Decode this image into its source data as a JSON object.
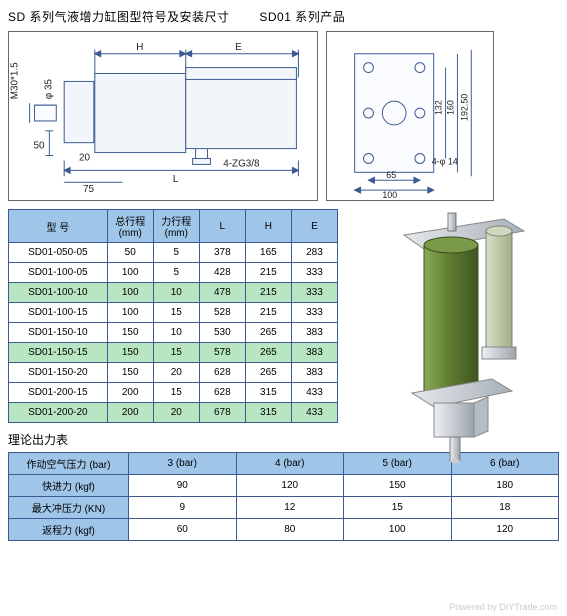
{
  "title_left": "SD 系列气液增力缸图型符号及安装尺寸",
  "title_right": "SD01 系列产品",
  "specs_table": {
    "columns": [
      "型 号",
      "总行程\n(mm)",
      "力行程\n(mm)",
      "L",
      "H",
      "E"
    ],
    "col_widths": [
      "30%",
      "14%",
      "14%",
      "14%",
      "14%",
      "14%"
    ],
    "rows": [
      {
        "cells": [
          "SD01-050-05",
          "50",
          "5",
          "378",
          "165",
          "283"
        ],
        "hl": false
      },
      {
        "cells": [
          "SD01-100-05",
          "100",
          "5",
          "428",
          "215",
          "333"
        ],
        "hl": false
      },
      {
        "cells": [
          "SD01-100-10",
          "100",
          "10",
          "478",
          "215",
          "333"
        ],
        "hl": true
      },
      {
        "cells": [
          "SD01-100-15",
          "100",
          "15",
          "528",
          "215",
          "333"
        ],
        "hl": false
      },
      {
        "cells": [
          "SD01-150-10",
          "150",
          "10",
          "530",
          "265",
          "383"
        ],
        "hl": false
      },
      {
        "cells": [
          "SD01-150-15",
          "150",
          "15",
          "578",
          "265",
          "383"
        ],
        "hl": true
      },
      {
        "cells": [
          "SD01-150-20",
          "150",
          "20",
          "628",
          "265",
          "383"
        ],
        "hl": false
      },
      {
        "cells": [
          "SD01-200-15",
          "200",
          "15",
          "628",
          "315",
          "433"
        ],
        "hl": false
      },
      {
        "cells": [
          "SD01-200-20",
          "200",
          "20",
          "678",
          "315",
          "433"
        ],
        "hl": true
      }
    ]
  },
  "output_section_label": "理论出力表",
  "output_table": {
    "header": [
      "作动空气压力 (bar)",
      "3 (bar)",
      "4 (bar)",
      "5 (bar)",
      "6 (bar)"
    ],
    "rows": [
      [
        "快进力 (kgf)",
        "90",
        "120",
        "150",
        "180"
      ],
      [
        "最大冲压力 (KN)",
        "9",
        "12",
        "15",
        "18"
      ],
      [
        "返程力 (kgf)",
        "60",
        "80",
        "100",
        "120"
      ]
    ]
  },
  "left_diagram": {
    "labels": {
      "H": "H",
      "E": "E",
      "L": "L",
      "d50": "50",
      "d20": "20",
      "d75": "75",
      "thread": "M30*1.5",
      "phi": "φ 35",
      "port": "4-ZG3/8"
    },
    "colors": {
      "line": "#3b5b92",
      "dim": "#3b5b92",
      "fill": "#eef2f8"
    }
  },
  "right_diagram": {
    "labels": {
      "d65": "65",
      "d100": "100",
      "d132": "132",
      "d160": "160",
      "d192": "192.50",
      "hole": "4-φ 14"
    },
    "colors": {
      "line": "#3b5b92"
    }
  },
  "render3d": {
    "colors": {
      "plate": "#c0c6cc",
      "barrel_main": "#6a8a3b",
      "barrel_small": "#bfc9a7",
      "cap": "#cfd6dc",
      "rod": "#9aa2aa",
      "shadow": "#7e868e",
      "bg": "#ffffff"
    }
  },
  "watermark": "Powered by DIYTrade.com"
}
